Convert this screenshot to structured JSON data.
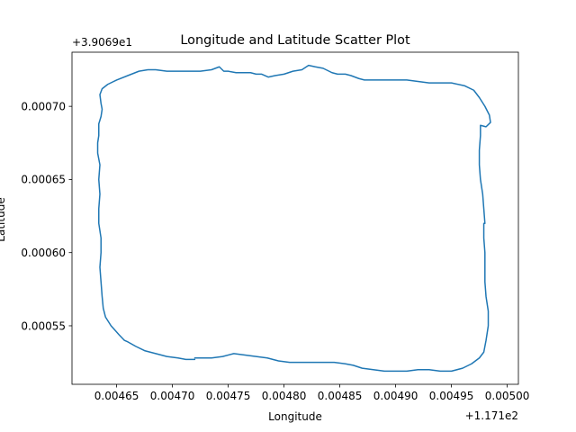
{
  "chart_data": {
    "type": "line",
    "title": "Longitude and Latitude Scatter Plot",
    "xlabel": "Longitude",
    "ylabel": "Latitude",
    "x_offset_label": "+1.171e2",
    "y_offset_label": "+3.9069e1",
    "xlim": [
      0.00461,
      0.00501
    ],
    "ylim": [
      0.00051,
      0.000737
    ],
    "x_ticks": [
      0.00465,
      0.0047,
      0.00475,
      0.0048,
      0.00485,
      0.0049,
      0.00495,
      0.005
    ],
    "x_tick_labels": [
      "0.00465",
      "0.00470",
      "0.00475",
      "0.00480",
      "0.00485",
      "0.00490",
      "0.00495",
      "0.00500"
    ],
    "y_ticks": [
      0.00055,
      0.0006,
      0.00065,
      0.0007
    ],
    "y_tick_labels": [
      "0.00055",
      "0.00060",
      "0.00065",
      "0.00070"
    ],
    "grid": false,
    "series_color": "#1f77b4",
    "series": [
      {
        "points": [
          [
            0.00472,
            0.000528
          ],
          [
            0.004735,
            0.000528
          ],
          [
            0.004745,
            0.000529
          ],
          [
            0.004755,
            0.000531
          ],
          [
            0.004765,
            0.00053
          ],
          [
            0.004775,
            0.000529
          ],
          [
            0.004785,
            0.000528
          ],
          [
            0.004795,
            0.000526
          ],
          [
            0.004805,
            0.000525
          ],
          [
            0.004815,
            0.000525
          ],
          [
            0.004825,
            0.000525
          ],
          [
            0.004835,
            0.000525
          ],
          [
            0.004845,
            0.000525
          ],
          [
            0.004855,
            0.000524
          ],
          [
            0.004862,
            0.000523
          ],
          [
            0.00487,
            0.000521
          ],
          [
            0.00488,
            0.00052
          ],
          [
            0.00489,
            0.000519
          ],
          [
            0.0049,
            0.000519
          ],
          [
            0.00491,
            0.000519
          ],
          [
            0.00492,
            0.00052
          ],
          [
            0.00493,
            0.00052
          ],
          [
            0.00494,
            0.000519
          ],
          [
            0.00495,
            0.000519
          ],
          [
            0.00496,
            0.000521
          ],
          [
            0.004968,
            0.000524
          ],
          [
            0.004975,
            0.000528
          ],
          [
            0.004979,
            0.000532
          ],
          [
            0.004981,
            0.00054
          ],
          [
            0.004983,
            0.00055
          ],
          [
            0.004983,
            0.00056
          ],
          [
            0.004981,
            0.00057
          ],
          [
            0.00498,
            0.00058
          ],
          [
            0.00498,
            0.00059
          ],
          [
            0.00498,
            0.0006
          ],
          [
            0.004979,
            0.00061
          ],
          [
            0.004979,
            0.00062
          ],
          [
            0.00498,
            0.00062
          ],
          [
            0.004979,
            0.00063
          ],
          [
            0.004978,
            0.00064
          ],
          [
            0.004977,
            0.000645
          ],
          [
            0.004976,
            0.00065
          ],
          [
            0.004975,
            0.00066
          ],
          [
            0.004975,
            0.00067
          ],
          [
            0.004976,
            0.00068
          ],
          [
            0.004976,
            0.000687
          ],
          [
            0.004981,
            0.000686
          ],
          [
            0.004985,
            0.000689
          ],
          [
            0.004984,
            0.000694
          ],
          [
            0.00498,
            0.0007
          ],
          [
            0.004975,
            0.000706
          ],
          [
            0.00497,
            0.000711
          ],
          [
            0.004962,
            0.000714
          ],
          [
            0.00495,
            0.000716
          ],
          [
            0.00494,
            0.000716
          ],
          [
            0.00493,
            0.000716
          ],
          [
            0.00492,
            0.000717
          ],
          [
            0.00491,
            0.000718
          ],
          [
            0.0049,
            0.000718
          ],
          [
            0.00489,
            0.000718
          ],
          [
            0.00488,
            0.000718
          ],
          [
            0.004872,
            0.000718
          ],
          [
            0.004867,
            0.000719
          ],
          [
            0.00486,
            0.000721
          ],
          [
            0.004855,
            0.000722
          ],
          [
            0.004848,
            0.000722
          ],
          [
            0.004843,
            0.000723
          ],
          [
            0.004835,
            0.000726
          ],
          [
            0.004828,
            0.000727
          ],
          [
            0.004822,
            0.000728
          ],
          [
            0.004816,
            0.000725
          ],
          [
            0.004808,
            0.000724
          ],
          [
            0.0048,
            0.000722
          ],
          [
            0.004792,
            0.000721
          ],
          [
            0.004786,
            0.00072
          ],
          [
            0.00478,
            0.000722
          ],
          [
            0.004775,
            0.000722
          ],
          [
            0.00477,
            0.000723
          ],
          [
            0.004763,
            0.000723
          ],
          [
            0.004757,
            0.000723
          ],
          [
            0.00475,
            0.000724
          ],
          [
            0.004746,
            0.000724
          ],
          [
            0.004742,
            0.000727
          ],
          [
            0.004735,
            0.000725
          ],
          [
            0.004725,
            0.000724
          ],
          [
            0.00471,
            0.000724
          ],
          [
            0.004695,
            0.000724
          ],
          [
            0.004685,
            0.000725
          ],
          [
            0.004678,
            0.000725
          ],
          [
            0.00467,
            0.000724
          ],
          [
            0.00466,
            0.000721
          ],
          [
            0.00465,
            0.000718
          ],
          [
            0.004642,
            0.000715
          ],
          [
            0.004637,
            0.000712
          ],
          [
            0.004635,
            0.000708
          ],
          [
            0.004636,
            0.000702
          ],
          [
            0.004637,
            0.000698
          ],
          [
            0.004636,
            0.000693
          ],
          [
            0.004634,
            0.000688
          ],
          [
            0.004634,
            0.00068
          ],
          [
            0.004633,
            0.000675
          ],
          [
            0.004633,
            0.000668
          ],
          [
            0.004634,
            0.000664
          ],
          [
            0.004635,
            0.00066
          ],
          [
            0.004634,
            0.00065
          ],
          [
            0.004635,
            0.00064
          ],
          [
            0.004634,
            0.00063
          ],
          [
            0.004634,
            0.00062
          ],
          [
            0.004636,
            0.00061
          ],
          [
            0.004636,
            0.0006
          ],
          [
            0.004635,
            0.00059
          ],
          [
            0.004636,
            0.00058
          ],
          [
            0.004637,
            0.00057
          ],
          [
            0.004638,
            0.000562
          ],
          [
            0.00464,
            0.000556
          ],
          [
            0.004645,
            0.00055
          ],
          [
            0.004652,
            0.000544
          ],
          [
            0.004657,
            0.00054
          ],
          [
            0.00466,
            0.000539
          ],
          [
            0.004667,
            0.000536
          ],
          [
            0.004675,
            0.000533
          ],
          [
            0.004685,
            0.000531
          ],
          [
            0.004695,
            0.000529
          ],
          [
            0.004705,
            0.000528
          ],
          [
            0.004712,
            0.000527
          ],
          [
            0.00472,
            0.000527
          ]
        ]
      }
    ]
  }
}
